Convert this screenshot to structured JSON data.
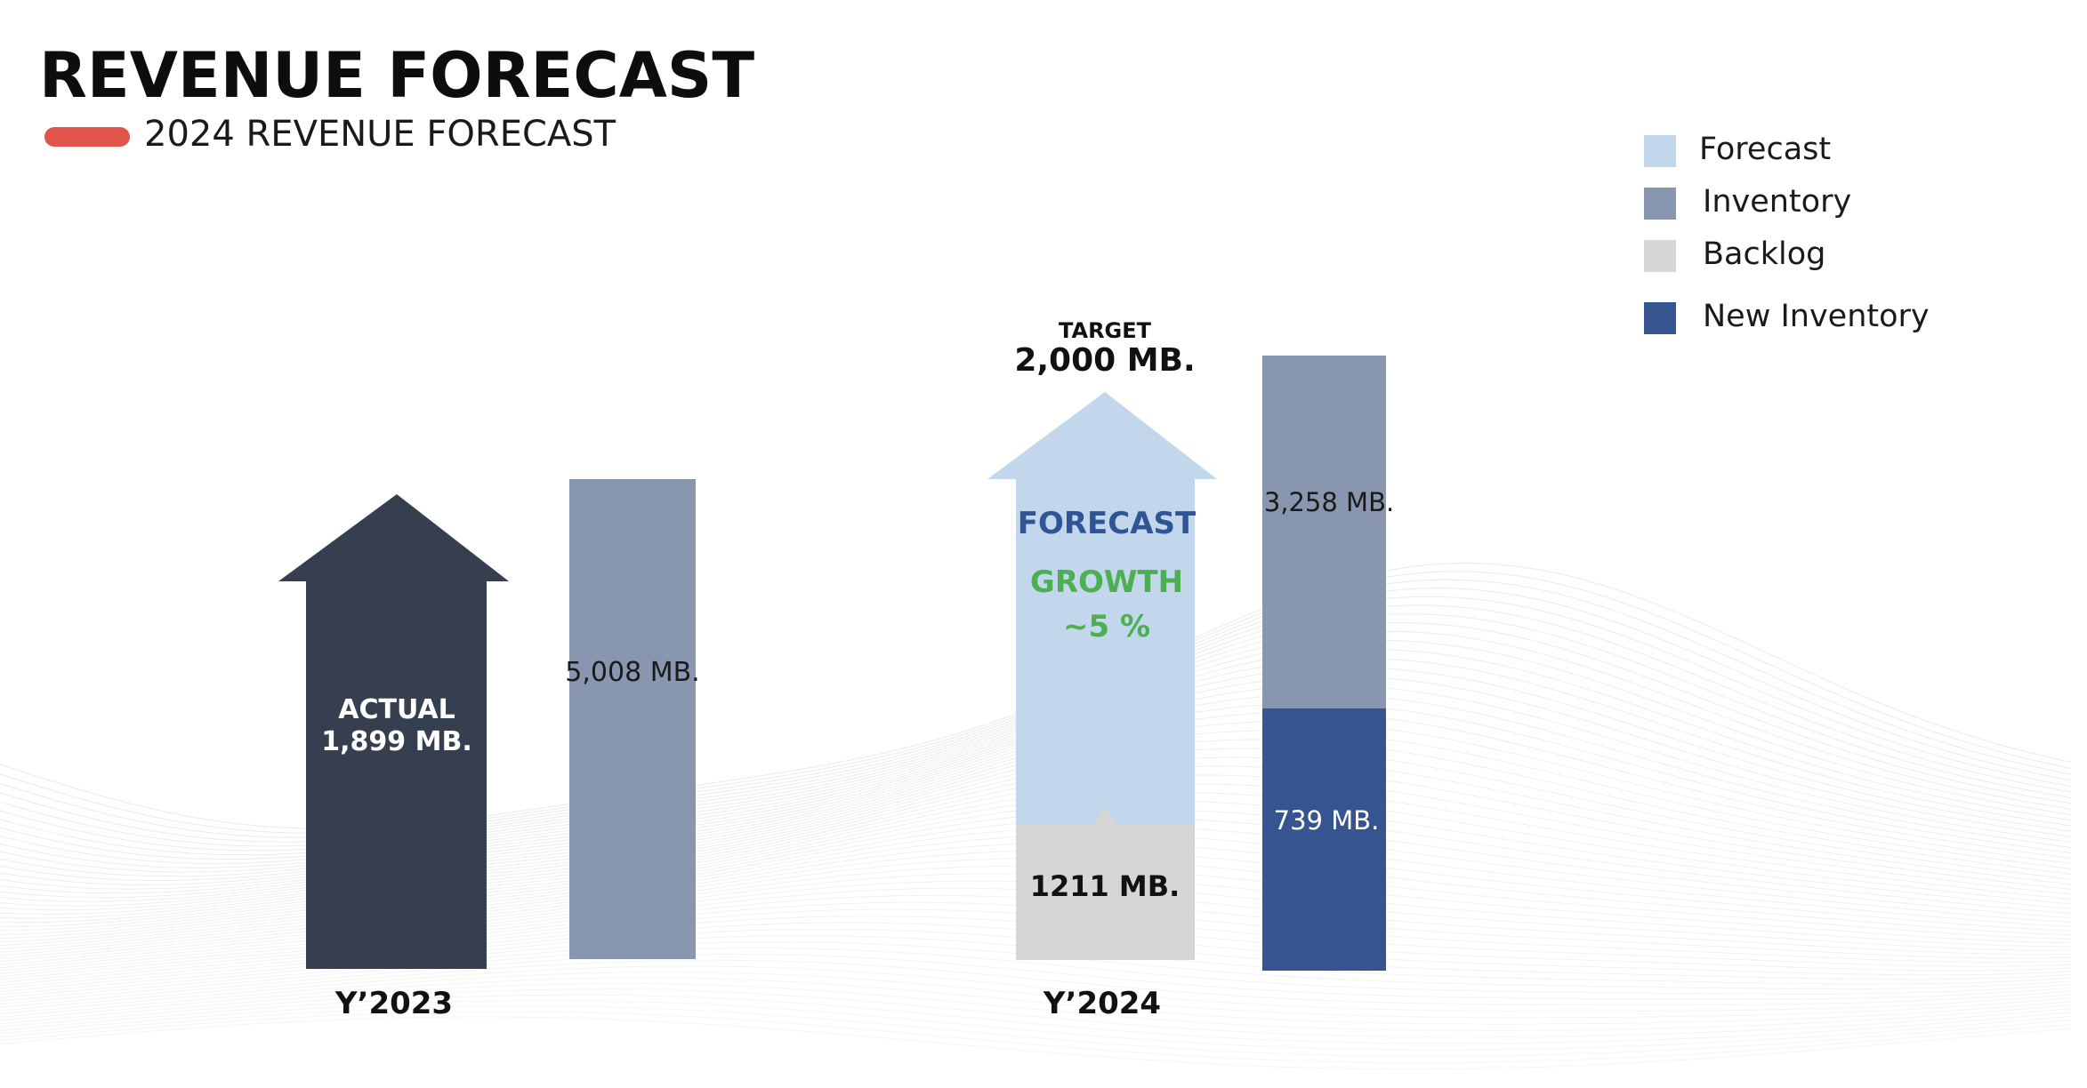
{
  "header": {
    "title": "REVENUE FORECAST",
    "subtitle": "2024 REVENUE FORECAST"
  },
  "colors": {
    "accent_pill": "#e0544a",
    "actual_arrow": "#363f4f",
    "forecast": "#c3d7ec",
    "inventory": "#8896b0",
    "backlog": "#d6d6d6",
    "new_inventory": "#365490",
    "forecast_text": "#2f5597",
    "growth_text": "#4caf50"
  },
  "legend": [
    {
      "label": "Forecast",
      "color": "#c3d7ec"
    },
    {
      "label": "Inventory",
      "color": "#8896b0"
    },
    {
      "label": "Backlog",
      "color": "#d6d6d6"
    },
    {
      "label": "New Inventory",
      "color": "#365490"
    }
  ],
  "chart_data": {
    "type": "bar",
    "categories": [
      "Y’2023",
      "Y’2024"
    ],
    "series": [
      {
        "name": "Inventory",
        "values": [
          5008,
          3258
        ],
        "labels": [
          "5,008 MB.",
          "3,258 MB."
        ]
      },
      {
        "name": "New Inventory",
        "values": [
          null,
          739
        ],
        "labels": [
          "",
          "739 MB."
        ]
      },
      {
        "name": "Backlog",
        "values": [
          null,
          1211
        ],
        "labels": [
          "",
          "1211 MB."
        ]
      },
      {
        "name": "Forecast",
        "values": [
          null,
          2000
        ],
        "labels": [
          "",
          ""
        ]
      }
    ],
    "actual_2023": {
      "label_line1": "ACTUAL",
      "label_line2": "1,899 MB.",
      "value": 1899
    },
    "target_2024": {
      "label_line1": "TARGET",
      "label_line2": "2,000 MB.",
      "value": 2000
    },
    "forecast_growth": {
      "label_forecast": "FORECAST",
      "label_growth": "GROWTH",
      "label_percent": "~5 %",
      "percent": 5
    },
    "legend_position": "top-right",
    "grid": false
  }
}
